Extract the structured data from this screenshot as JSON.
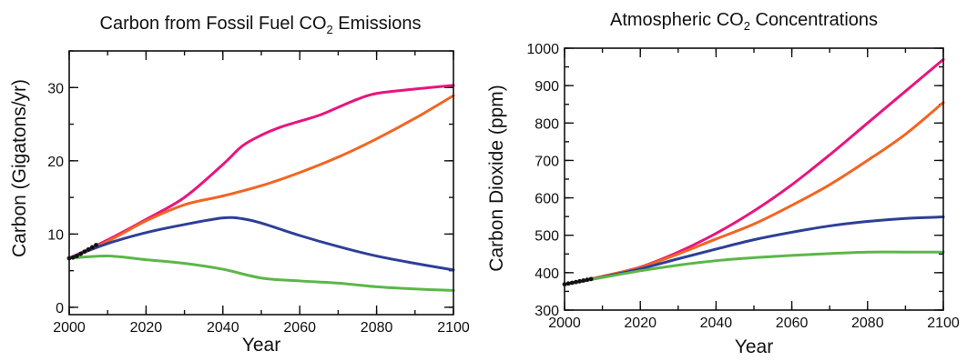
{
  "chart_data": [
    {
      "type": "line",
      "title": {
        "main": "Carbon from Fossil Fuel CO",
        "sub": "2",
        "rest": " Emissions"
      },
      "xlabel": "Year",
      "ylabel": "Carbon (Gigatons/yr)",
      "xlim": [
        2000,
        2100
      ],
      "ylim": [
        -1,
        35
      ],
      "xticks": [
        2000,
        2020,
        2040,
        2060,
        2080,
        2100
      ],
      "yticks": [
        0,
        10,
        20,
        30
      ],
      "x_minor_step": 10,
      "y_minor_step": 5,
      "grid": false,
      "legend": "none",
      "series": [
        {
          "color": "#e8157f",
          "points": [
            [
              2000,
              6.7
            ],
            [
              2010,
              9.2
            ],
            [
              2020,
              12.0
            ],
            [
              2030,
              15.0
            ],
            [
              2040,
              19.5
            ],
            [
              2045,
              22.0
            ],
            [
              2050,
              23.5
            ],
            [
              2055,
              24.6
            ],
            [
              2060,
              25.4
            ],
            [
              2065,
              26.2
            ],
            [
              2070,
              27.3
            ],
            [
              2075,
              28.4
            ],
            [
              2080,
              29.2
            ],
            [
              2090,
              29.8
            ],
            [
              2100,
              30.3
            ]
          ]
        },
        {
          "color": "#f26522",
          "points": [
            [
              2000,
              6.7
            ],
            [
              2010,
              9.0
            ],
            [
              2020,
              11.8
            ],
            [
              2030,
              14.0
            ],
            [
              2040,
              15.2
            ],
            [
              2050,
              16.6
            ],
            [
              2060,
              18.4
            ],
            [
              2070,
              20.5
            ],
            [
              2080,
              23.0
            ],
            [
              2090,
              25.8
            ],
            [
              2100,
              28.9
            ]
          ]
        },
        {
          "color": "#2e3f99",
          "points": [
            [
              2000,
              6.7
            ],
            [
              2010,
              8.7
            ],
            [
              2020,
              10.2
            ],
            [
              2030,
              11.3
            ],
            [
              2040,
              12.2
            ],
            [
              2045,
              12.1
            ],
            [
              2050,
              11.5
            ],
            [
              2060,
              9.8
            ],
            [
              2070,
              8.3
            ],
            [
              2080,
              7.0
            ],
            [
              2090,
              6.0
            ],
            [
              2100,
              5.1
            ]
          ]
        },
        {
          "color": "#5cb748",
          "points": [
            [
              2000,
              6.7
            ],
            [
              2010,
              7.0
            ],
            [
              2020,
              6.5
            ],
            [
              2030,
              6.0
            ],
            [
              2040,
              5.2
            ],
            [
              2050,
              4.0
            ],
            [
              2060,
              3.6
            ],
            [
              2070,
              3.3
            ],
            [
              2080,
              2.8
            ],
            [
              2090,
              2.5
            ],
            [
              2100,
              2.3
            ]
          ]
        }
      ],
      "observed": {
        "color": "#111111",
        "points": [
          [
            2000,
            6.7
          ],
          [
            2001,
            6.8
          ],
          [
            2002,
            7.0
          ],
          [
            2003,
            7.3
          ],
          [
            2004,
            7.6
          ],
          [
            2005,
            7.9
          ],
          [
            2006,
            8.2
          ],
          [
            2007,
            8.5
          ]
        ]
      }
    },
    {
      "type": "line",
      "title": {
        "main": "Atmospheric CO",
        "sub": "2",
        "rest": " Concentrations"
      },
      "xlabel": "Year",
      "ylabel": "Carbon Dioxide (ppm)",
      "xlim": [
        2000,
        2100
      ],
      "ylim": [
        300,
        1000
      ],
      "xticks": [
        2000,
        2020,
        2040,
        2060,
        2080,
        2100
      ],
      "yticks": [
        300,
        400,
        500,
        600,
        700,
        800,
        900,
        1000
      ],
      "x_minor_step": 10,
      "y_minor_step": 50,
      "grid": false,
      "legend": "none",
      "series": [
        {
          "color": "#e8157f",
          "points": [
            [
              2000,
              368
            ],
            [
              2010,
              390
            ],
            [
              2020,
              415
            ],
            [
              2030,
              455
            ],
            [
              2040,
              505
            ],
            [
              2050,
              565
            ],
            [
              2060,
              635
            ],
            [
              2070,
              715
            ],
            [
              2080,
              800
            ],
            [
              2090,
              885
            ],
            [
              2100,
              970
            ]
          ]
        },
        {
          "color": "#f26522",
          "points": [
            [
              2000,
              368
            ],
            [
              2010,
              390
            ],
            [
              2020,
              414
            ],
            [
              2030,
              450
            ],
            [
              2040,
              490
            ],
            [
              2050,
              530
            ],
            [
              2060,
              580
            ],
            [
              2070,
              635
            ],
            [
              2080,
              700
            ],
            [
              2090,
              770
            ],
            [
              2100,
              855
            ]
          ]
        },
        {
          "color": "#2e3f99",
          "points": [
            [
              2000,
              368
            ],
            [
              2010,
              388
            ],
            [
              2020,
              410
            ],
            [
              2030,
              437
            ],
            [
              2040,
              463
            ],
            [
              2050,
              488
            ],
            [
              2060,
              508
            ],
            [
              2070,
              525
            ],
            [
              2080,
              537
            ],
            [
              2090,
              545
            ],
            [
              2100,
              549
            ]
          ]
        },
        {
          "color": "#5cb748",
          "points": [
            [
              2000,
              368
            ],
            [
              2010,
              387
            ],
            [
              2020,
              405
            ],
            [
              2030,
              420
            ],
            [
              2040,
              432
            ],
            [
              2050,
              440
            ],
            [
              2060,
              446
            ],
            [
              2070,
              451
            ],
            [
              2080,
              455
            ],
            [
              2090,
              455
            ],
            [
              2100,
              455
            ]
          ]
        }
      ],
      "observed": {
        "color": "#111111",
        "points": [
          [
            2000,
            369
          ],
          [
            2001,
            371
          ],
          [
            2002,
            373
          ],
          [
            2003,
            375
          ],
          [
            2004,
            377
          ],
          [
            2005,
            379
          ],
          [
            2006,
            381
          ],
          [
            2007,
            383
          ]
        ]
      }
    }
  ]
}
